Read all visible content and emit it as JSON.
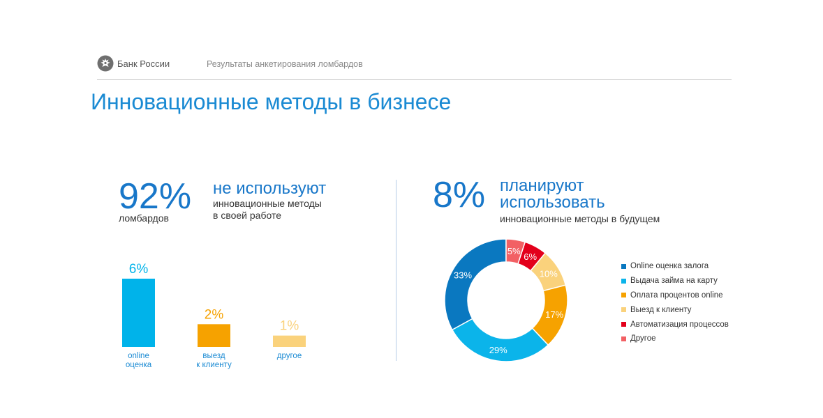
{
  "header": {
    "bank_name": "Банк России",
    "doc_title": "Результаты анкетирования ломбардов"
  },
  "page_title": "Инновационные методы в бизнесе",
  "left": {
    "big_value": "92%",
    "under_label": "ломбардов",
    "headline": "не используют",
    "sub_line1": "инновационные методы",
    "sub_line2": "в своей работе"
  },
  "right": {
    "big_value": "8%",
    "headline_line1": "планируют",
    "headline_line2": "использовать",
    "sub": "инновационные методы в будущем"
  },
  "colors": {
    "title_blue": "#1a8ad3",
    "big_blue": "#1877c9",
    "divider": "#b5cce6"
  },
  "icons": {
    "logo": "bank-of-russia-eagle-icon"
  },
  "chart_data": [
    {
      "type": "bar",
      "categories": [
        [
          "online",
          "оценка"
        ],
        [
          "выезд",
          "к клиенту"
        ],
        [
          "другое"
        ]
      ],
      "values": [
        6,
        2,
        1
      ],
      "value_labels": [
        "6%",
        "2%",
        "1%"
      ],
      "colors": [
        "#00b3ea",
        "#f6a200",
        "#fad27c"
      ],
      "ylim": [
        0,
        6
      ]
    },
    {
      "type": "pie",
      "donut": true,
      "labels": [
        "Online оценка залога",
        "Выдача займа на карту",
        "Оплата процентов online",
        "Выезд к клиенту",
        "Автоматизация процессов",
        "Другое"
      ],
      "values": [
        33,
        29,
        17,
        10,
        6,
        5
      ],
      "value_labels": [
        "33%",
        "29%",
        "17%",
        "10%",
        "6%",
        "5%"
      ],
      "colors": [
        "#0a78c0",
        "#0bb4ea",
        "#f6a200",
        "#fad27c",
        "#e3001b",
        "#f26064"
      ],
      "legend": "right",
      "start": "top",
      "direction": "counterclockwise"
    }
  ]
}
